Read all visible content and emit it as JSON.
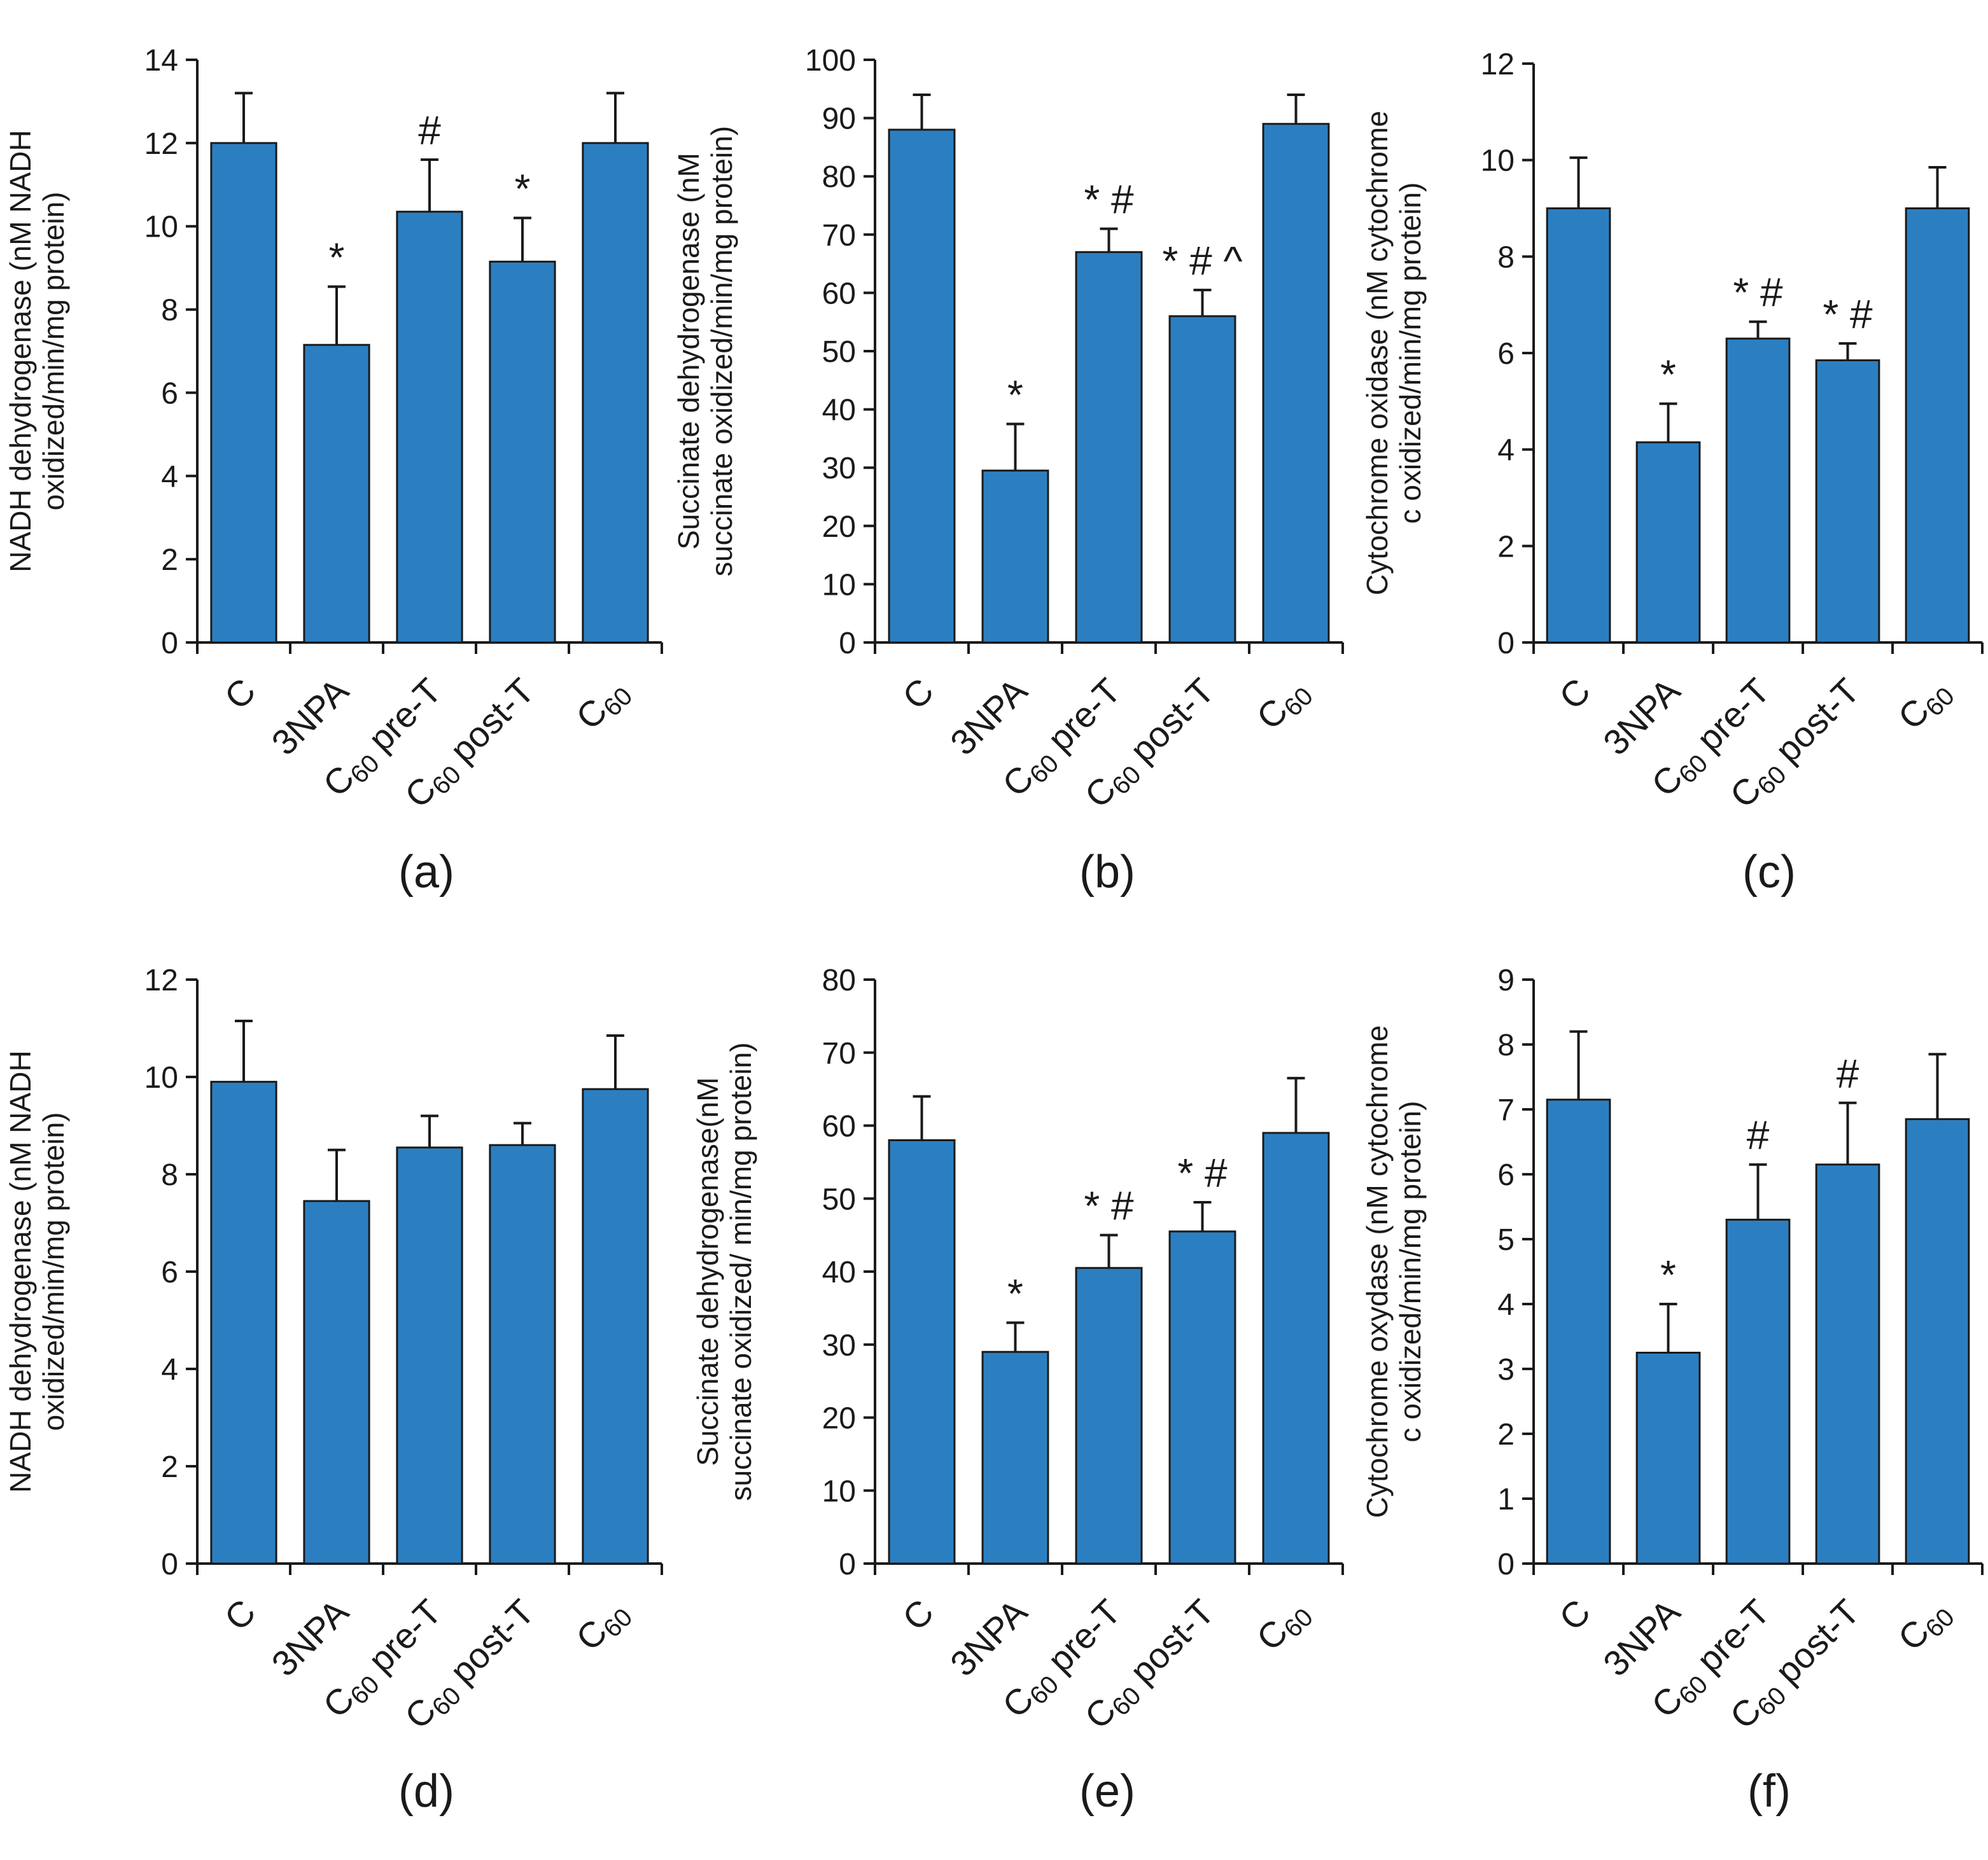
{
  "chart_data": [
    {
      "id": "a",
      "type": "bar",
      "panel_label": "(a)",
      "ylabel": [
        "NADH dehydrogenase (nM NADH",
        "oxidized/min/mg protein)"
      ],
      "ylim": [
        0,
        14
      ],
      "ticks": [
        0,
        2,
        4,
        6,
        8,
        10,
        12,
        14
      ],
      "categories": [
        {
          "main": "C",
          "sub": "",
          "rest": ""
        },
        {
          "main": "3NPA",
          "sub": "",
          "rest": ""
        },
        {
          "main": "C",
          "sub": "60",
          "rest": " pre-T"
        },
        {
          "main": "C",
          "sub": "60",
          "rest": " post-T"
        },
        {
          "main": "C",
          "sub": "60",
          "rest": ""
        }
      ],
      "values": [
        12.0,
        7.15,
        10.35,
        9.15,
        12.0
      ],
      "errors": [
        1.2,
        1.4,
        1.25,
        1.05,
        1.2
      ],
      "annotations": [
        "",
        "*",
        "#",
        "*",
        ""
      ]
    },
    {
      "id": "b",
      "type": "bar",
      "panel_label": "(b)",
      "ylabel": [
        "Succinate dehydrogenase (nM",
        "succinate oxidized/min/mg protein)"
      ],
      "ylim": [
        0,
        100
      ],
      "ticks": [
        0,
        10,
        20,
        30,
        40,
        50,
        60,
        70,
        80,
        90,
        100
      ],
      "categories": [
        {
          "main": "C",
          "sub": "",
          "rest": ""
        },
        {
          "main": "3NPA",
          "sub": "",
          "rest": ""
        },
        {
          "main": "C",
          "sub": "60",
          "rest": " pre-T"
        },
        {
          "main": "C",
          "sub": "60",
          "rest": " post-T"
        },
        {
          "main": "C",
          "sub": "60",
          "rest": ""
        }
      ],
      "values": [
        88,
        29.5,
        67,
        56,
        89
      ],
      "errors": [
        6,
        8,
        4,
        4.5,
        5
      ],
      "annotations": [
        "",
        "*",
        "* #",
        "* # ^",
        ""
      ]
    },
    {
      "id": "c",
      "type": "bar",
      "panel_label": "(c)",
      "ylabel": [
        "Cytochrome oxidase (nM cytochrome",
        "c oxidized/min/mg protein)"
      ],
      "ylim": [
        0,
        12
      ],
      "ticks": [
        0,
        2,
        4,
        6,
        8,
        10,
        12
      ],
      "categories": [
        {
          "main": "C",
          "sub": "",
          "rest": ""
        },
        {
          "main": "3NPA",
          "sub": "",
          "rest": ""
        },
        {
          "main": "C",
          "sub": "60",
          "rest": " pre-T"
        },
        {
          "main": "C",
          "sub": "60",
          "rest": " post-T"
        },
        {
          "main": "C",
          "sub": "60",
          "rest": ""
        }
      ],
      "values": [
        9.0,
        4.15,
        6.3,
        5.85,
        9.0
      ],
      "errors": [
        1.05,
        0.8,
        0.35,
        0.35,
        0.85
      ],
      "annotations": [
        "",
        "*",
        "* #",
        "* #",
        ""
      ]
    },
    {
      "id": "d",
      "type": "bar",
      "panel_label": "(d)",
      "ylabel": [
        "NADH dehydrogenase (nM NADH",
        "oxidized/min/mg protein)"
      ],
      "ylim": [
        0,
        12
      ],
      "ticks": [
        0,
        2,
        4,
        6,
        8,
        10,
        12
      ],
      "categories": [
        {
          "main": "C",
          "sub": "",
          "rest": ""
        },
        {
          "main": "3NPA",
          "sub": "",
          "rest": ""
        },
        {
          "main": "C",
          "sub": "60",
          "rest": " pre-T"
        },
        {
          "main": "C",
          "sub": "60",
          "rest": " post-T"
        },
        {
          "main": "C",
          "sub": "60",
          "rest": ""
        }
      ],
      "values": [
        9.9,
        7.45,
        8.55,
        8.6,
        9.75
      ],
      "errors": [
        1.25,
        1.05,
        0.65,
        0.45,
        1.1
      ],
      "annotations": [
        "",
        "",
        "",
        "",
        ""
      ]
    },
    {
      "id": "e",
      "type": "bar",
      "panel_label": "(e)",
      "ylabel": [
        "Succinate dehydrogenase(nM",
        "succinate oxidized/ min/mg protein)"
      ],
      "ylim": [
        0,
        80
      ],
      "ticks": [
        0,
        10,
        20,
        30,
        40,
        50,
        60,
        70,
        80
      ],
      "categories": [
        {
          "main": "C",
          "sub": "",
          "rest": ""
        },
        {
          "main": "3NPA",
          "sub": "",
          "rest": ""
        },
        {
          "main": "C",
          "sub": "60",
          "rest": " pre-T"
        },
        {
          "main": "C",
          "sub": "60",
          "rest": " post-T"
        },
        {
          "main": "C",
          "sub": "60",
          "rest": ""
        }
      ],
      "values": [
        58,
        29,
        40.5,
        45.5,
        59
      ],
      "errors": [
        6,
        4,
        4.5,
        4,
        7.5
      ],
      "annotations": [
        "",
        "*",
        "* #",
        "* #",
        ""
      ]
    },
    {
      "id": "f",
      "type": "bar",
      "panel_label": "(f)",
      "ylabel": [
        "Cytochrome oxydase (nM cytochrome",
        "c oxidized/min/mg protein)"
      ],
      "ylim": [
        0,
        9
      ],
      "ticks": [
        0,
        1,
        2,
        3,
        4,
        5,
        6,
        7,
        8,
        9
      ],
      "categories": [
        {
          "main": "C",
          "sub": "",
          "rest": ""
        },
        {
          "main": "3NPA",
          "sub": "",
          "rest": ""
        },
        {
          "main": "C",
          "sub": "60",
          "rest": " pre-T"
        },
        {
          "main": "C",
          "sub": "60",
          "rest": " post-T"
        },
        {
          "main": "C",
          "sub": "60",
          "rest": ""
        }
      ],
      "values": [
        7.15,
        3.25,
        5.3,
        6.15,
        6.85
      ],
      "errors": [
        1.05,
        0.75,
        0.85,
        0.95,
        1.0
      ],
      "annotations": [
        "",
        "*",
        "#",
        "#",
        ""
      ]
    }
  ]
}
